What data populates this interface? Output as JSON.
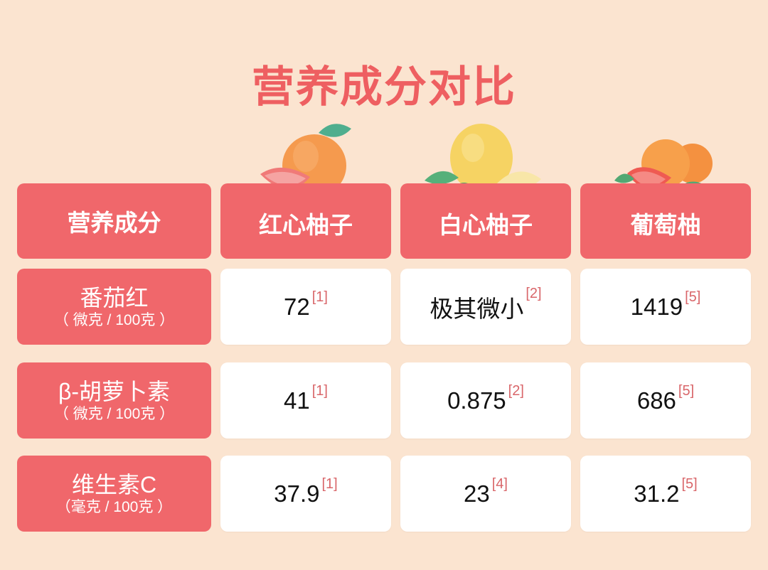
{
  "title": "营养成分对比",
  "colors": {
    "background": "#fbe4d0",
    "accent": "#f0676b",
    "title": "#ee5f61",
    "reference": "#d9666a"
  },
  "header": {
    "label": "营养成分",
    "columns": [
      {
        "name": "红心柚子",
        "icon": "red-pomelo-illustration"
      },
      {
        "name": "白心柚子",
        "icon": "white-pomelo-illustration"
      },
      {
        "name": "葡萄柚",
        "icon": "grapefruit-illustration"
      }
    ]
  },
  "rows": [
    {
      "name": "番茄红",
      "unit": "（ 微克 / 100克 ）",
      "values": [
        {
          "v": "72",
          "ref": "[1]"
        },
        {
          "v": "极其微小",
          "ref": "[2]"
        },
        {
          "v": "1419",
          "ref": "[5]"
        }
      ]
    },
    {
      "name": "β-胡萝卜素",
      "unit": "（ 微克 / 100克 ）",
      "values": [
        {
          "v": "41",
          "ref": "[1]"
        },
        {
          "v": "0.875",
          "ref": "[2]"
        },
        {
          "v": "686",
          "ref": "[5]"
        }
      ]
    },
    {
      "name": "维生素C",
      "unit": "（毫克 / 100克 ）",
      "values": [
        {
          "v": "37.9",
          "ref": "[1]"
        },
        {
          "v": "23",
          "ref": "[4]"
        },
        {
          "v": "31.2",
          "ref": "[5]"
        }
      ]
    }
  ]
}
